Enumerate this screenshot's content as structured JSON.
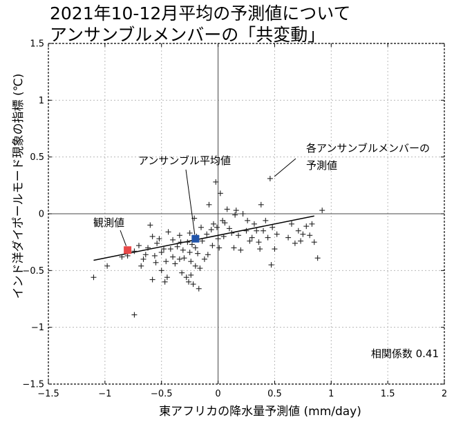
{
  "chart_data": {
    "type": "scatter",
    "title_lines": [
      "2021年10-12月平均の予測値について",
      "アンサンブルメンバーの「共変動」"
    ],
    "xlabel": "東アフリカの降水量予測値 (mm/day)",
    "ylabel": "インド洋ダイポールモード現象の指標 (℃)",
    "xlim": [
      -1.5,
      2
    ],
    "ylim": [
      -1.5,
      1.5
    ],
    "xticks": [
      -1.5,
      -1,
      -0.5,
      0,
      0.5,
      1,
      1.5,
      2
    ],
    "yticks": [
      -1.5,
      -1,
      -0.5,
      0,
      0.5,
      1,
      1.5
    ],
    "xtick_labels": [
      "−1.5",
      "−1",
      "−0.5",
      "0",
      "0.5",
      "1",
      "1.5",
      "2"
    ],
    "ytick_labels": [
      "−1.5",
      "−1",
      "−0.5",
      "0",
      "0.5",
      "1",
      "1.5"
    ],
    "grid": true,
    "members": [
      [
        -1.1,
        -0.56
      ],
      [
        -0.98,
        -0.46
      ],
      [
        -0.85,
        -0.38
      ],
      [
        -0.8,
        -0.37
      ],
      [
        -0.74,
        -0.33
      ],
      [
        -0.74,
        -0.89
      ],
      [
        -0.7,
        -0.28
      ],
      [
        -0.68,
        -0.46
      ],
      [
        -0.66,
        -0.4
      ],
      [
        -0.64,
        -0.36
      ],
      [
        -0.62,
        -0.3
      ],
      [
        -0.6,
        -0.1
      ],
      [
        -0.58,
        -0.58
      ],
      [
        -0.58,
        -0.2
      ],
      [
        -0.56,
        -0.37
      ],
      [
        -0.55,
        -0.43
      ],
      [
        -0.54,
        -0.26
      ],
      [
        -0.52,
        -0.22
      ],
      [
        -0.5,
        -0.34
      ],
      [
        -0.5,
        -0.5
      ],
      [
        -0.48,
        -0.31
      ],
      [
        -0.47,
        -0.6
      ],
      [
        -0.46,
        -0.42
      ],
      [
        -0.45,
        -0.56
      ],
      [
        -0.44,
        -0.16
      ],
      [
        -0.42,
        -0.31
      ],
      [
        -0.4,
        -0.38
      ],
      [
        -0.4,
        -0.23
      ],
      [
        -0.38,
        -0.44
      ],
      [
        -0.36,
        -0.29
      ],
      [
        -0.34,
        -0.19
      ],
      [
        -0.34,
        -0.4
      ],
      [
        -0.33,
        -0.25
      ],
      [
        -0.32,
        -0.52
      ],
      [
        -0.31,
        -0.32
      ],
      [
        -0.3,
        -0.39
      ],
      [
        -0.28,
        -0.56
      ],
      [
        -0.27,
        -0.25
      ],
      [
        -0.26,
        -0.6
      ],
      [
        -0.25,
        -0.17
      ],
      [
        -0.25,
        -0.34
      ],
      [
        -0.24,
        -0.42
      ],
      [
        -0.24,
        -0.54
      ],
      [
        -0.23,
        -0.27
      ],
      [
        -0.22,
        -0.62
      ],
      [
        -0.21,
        -0.04
      ],
      [
        -0.2,
        -0.46
      ],
      [
        -0.2,
        -0.3
      ],
      [
        -0.19,
        -0.2
      ],
      [
        -0.18,
        -0.35
      ],
      [
        -0.17,
        -0.66
      ],
      [
        -0.16,
        -0.48
      ],
      [
        -0.15,
        -0.12
      ],
      [
        -0.14,
        -0.24
      ],
      [
        -0.12,
        -0.4
      ],
      [
        -0.1,
        -0.18
      ],
      [
        -0.09,
        -0.36
      ],
      [
        -0.08,
        0.08
      ],
      [
        -0.06,
        -0.14
      ],
      [
        -0.05,
        -0.28
      ],
      [
        -0.04,
        -0.09
      ],
      [
        -0.02,
        0.28
      ],
      [
        -0.01,
        -0.12
      ],
      [
        0.0,
        -0.22
      ],
      [
        0.01,
        -0.3
      ],
      [
        0.02,
        0.18
      ],
      [
        0.04,
        -0.06
      ],
      [
        0.05,
        -0.2
      ],
      [
        0.06,
        -0.08
      ],
      [
        0.08,
        0.04
      ],
      [
        0.1,
        -0.13
      ],
      [
        0.12,
        -0.17
      ],
      [
        0.14,
        -0.3
      ],
      [
        0.15,
        -0.01
      ],
      [
        0.16,
        0.03
      ],
      [
        0.18,
        -0.19
      ],
      [
        0.2,
        -0.32
      ],
      [
        0.22,
        0.0
      ],
      [
        0.25,
        -0.15
      ],
      [
        0.26,
        -0.06
      ],
      [
        0.28,
        -0.24
      ],
      [
        0.3,
        -0.21
      ],
      [
        0.32,
        -0.09
      ],
      [
        0.34,
        -0.15
      ],
      [
        0.36,
        -0.25
      ],
      [
        0.37,
        -0.31
      ],
      [
        0.38,
        0.08
      ],
      [
        0.4,
        -0.15
      ],
      [
        0.42,
        -0.06
      ],
      [
        0.44,
        -0.21
      ],
      [
        0.46,
        0.31
      ],
      [
        0.47,
        -0.45
      ],
      [
        0.48,
        -0.12
      ],
      [
        0.5,
        -0.31
      ],
      [
        0.52,
        -0.18
      ],
      [
        0.62,
        -0.21
      ],
      [
        0.65,
        -0.09
      ],
      [
        0.68,
        -0.26
      ],
      [
        0.71,
        -0.15
      ],
      [
        0.73,
        -0.24
      ],
      [
        0.75,
        -0.18
      ],
      [
        0.78,
        -0.11
      ],
      [
        0.81,
        -0.19
      ],
      [
        0.83,
        -0.09
      ],
      [
        0.85,
        -0.25
      ],
      [
        0.88,
        -0.39
      ],
      [
        0.92,
        0.03
      ]
    ],
    "ensemble_mean": {
      "label": "アンサンブル平均値",
      "x": -0.2,
      "y": -0.22,
      "color": "#2255aa"
    },
    "observation": {
      "label": "観測値",
      "x": -0.8,
      "y": -0.32,
      "color": "#e84848"
    },
    "regression_line": {
      "x": [
        -1.1,
        0.85
      ],
      "y": [
        -0.41,
        -0.02
      ]
    },
    "member_label_lines": [
      "各アンサンブルメンバーの",
      "予測値"
    ],
    "correlation_label": "相関係数 0.41"
  }
}
